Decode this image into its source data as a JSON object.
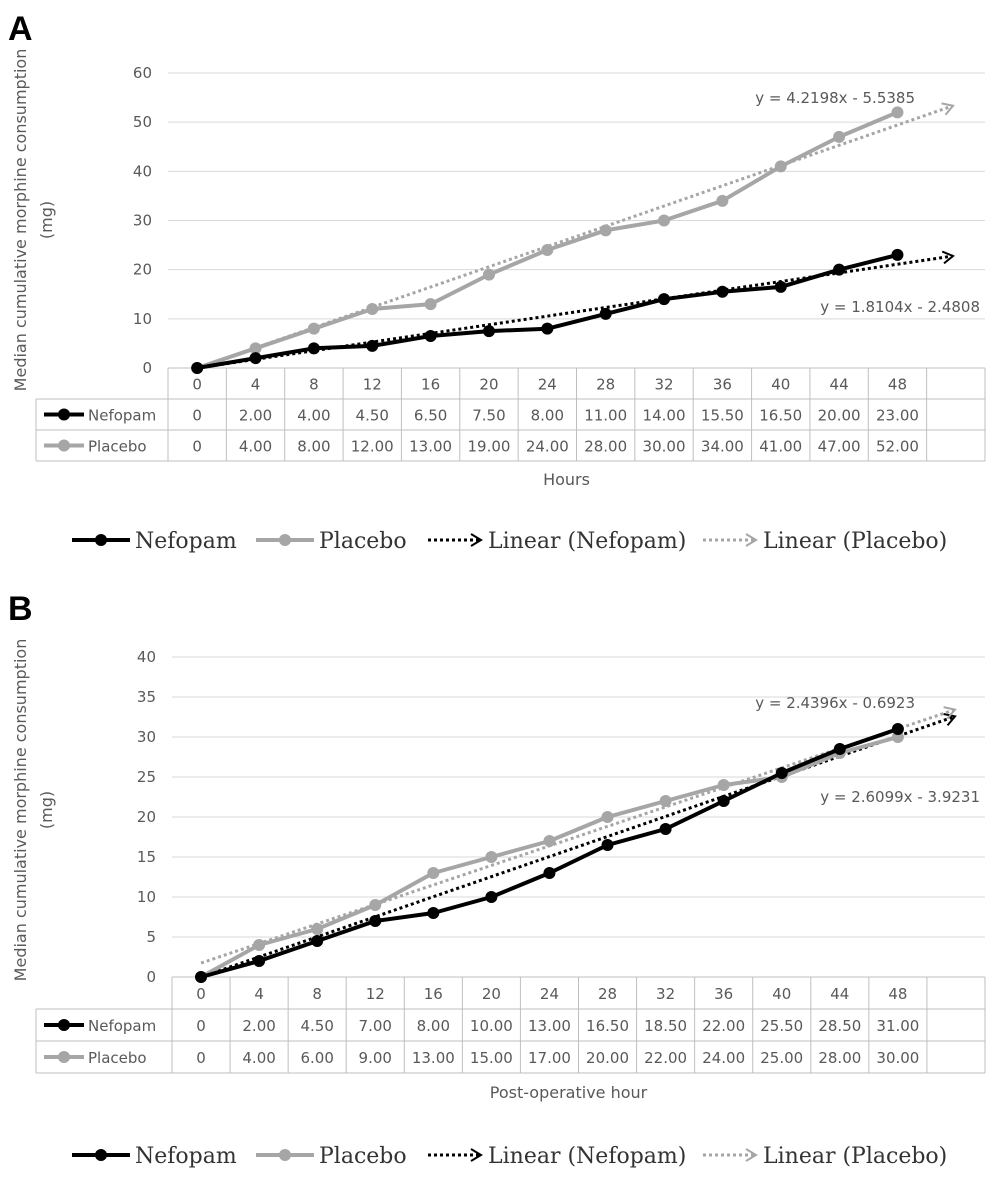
{
  "chart_data": [
    {
      "panel": "A",
      "type": "line",
      "xlabel": "Hours",
      "ylabel": "Median cumulative morphine consumption (mg)",
      "ylim": [
        0,
        60
      ],
      "yticks": [
        0,
        10,
        20,
        30,
        40,
        50,
        60
      ],
      "x": [
        0,
        4,
        8,
        12,
        16,
        20,
        24,
        28,
        32,
        36,
        40,
        44,
        48
      ],
      "x_labels": [
        "0",
        "4",
        "8",
        "12",
        "16",
        "20",
        "24",
        "28",
        "32",
        "36",
        "40",
        "44",
        "48"
      ],
      "series": [
        {
          "name": "Nefopam",
          "color": "#000000",
          "values": [
            0,
            2,
            4,
            4.5,
            6.5,
            7.5,
            8,
            11,
            14,
            15.5,
            16.5,
            20,
            23
          ],
          "table": [
            "0",
            "2.00",
            "4.00",
            "4.50",
            "6.50",
            "7.50",
            "8.00",
            "11.00",
            "14.00",
            "15.50",
            "16.50",
            "20.00",
            "23.00"
          ]
        },
        {
          "name": "Placebo",
          "color": "#a6a6a6",
          "values": [
            0,
            4,
            8,
            12,
            13,
            19,
            24,
            28,
            30,
            34,
            41,
            47,
            52
          ],
          "table": [
            "0",
            "4.00",
            "8.00",
            "12.00",
            "13.00",
            "19.00",
            "24.00",
            "28.00",
            "30.00",
            "34.00",
            "41.00",
            "47.00",
            "52.00"
          ]
        }
      ],
      "trendlines": [
        {
          "name": "Linear (Nefopam)",
          "color": "#000000",
          "slope": 1.8104,
          "intercept": -2.4808,
          "equation": "y = 1.8104x - 2.4808"
        },
        {
          "name": "Linear (Placebo)",
          "color": "#a6a6a6",
          "slope": 4.2198,
          "intercept": -5.5385,
          "equation": "y = 4.2198x - 5.5385"
        }
      ],
      "legend": [
        "Nefopam",
        "Placebo",
        "Linear (Nefopam)",
        "Linear (Placebo)"
      ],
      "grid": true,
      "legend_position": "bottom"
    },
    {
      "panel": "B",
      "type": "line",
      "xlabel": "Post-operative hour",
      "ylabel": "Median cumulative morphine consumption (mg)",
      "ylim": [
        0,
        40
      ],
      "yticks": [
        0,
        5,
        10,
        15,
        20,
        25,
        30,
        35,
        40
      ],
      "x": [
        0,
        4,
        8,
        12,
        16,
        20,
        24,
        28,
        32,
        36,
        40,
        44,
        48
      ],
      "x_labels": [
        "0",
        "4",
        "8",
        "12",
        "16",
        "20",
        "24",
        "28",
        "32",
        "36",
        "40",
        "44",
        "48"
      ],
      "series": [
        {
          "name": "Nefopam",
          "color": "#000000",
          "values": [
            0,
            2,
            4.5,
            7,
            8,
            10,
            13,
            16.5,
            18.5,
            22,
            25.5,
            28.5,
            31
          ],
          "table": [
            "0",
            "2.00",
            "4.50",
            "7.00",
            "8.00",
            "10.00",
            "13.00",
            "16.50",
            "18.50",
            "22.00",
            "25.50",
            "28.50",
            "31.00"
          ]
        },
        {
          "name": "Placebo",
          "color": "#a6a6a6",
          "values": [
            0,
            4,
            6,
            9,
            13,
            15,
            17,
            20,
            22,
            24,
            25,
            28,
            30
          ],
          "table": [
            "0",
            "4.00",
            "6.00",
            "9.00",
            "13.00",
            "15.00",
            "17.00",
            "20.00",
            "22.00",
            "24.00",
            "25.00",
            "28.00",
            "30.00"
          ]
        }
      ],
      "trendlines": [
        {
          "name": "Linear (Nefopam)",
          "color": "#000000",
          "slope": 2.6099,
          "intercept": -3.9231,
          "equation": "y = 2.6099x - 3.9231"
        },
        {
          "name": "Linear (Placebo)",
          "color": "#a6a6a6",
          "slope": 2.4396,
          "intercept": -0.6923,
          "equation": "y = 2.4396x - 0.6923"
        }
      ],
      "legend": [
        "Nefopam",
        "Placebo",
        "Linear (Nefopam)",
        "Linear (Placebo)"
      ],
      "grid": true,
      "legend_position": "bottom"
    }
  ]
}
